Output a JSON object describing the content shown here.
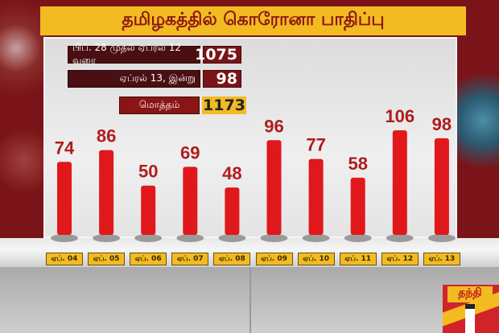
{
  "title": "தமிழகத்தில் கொரோனா பாதிப்பு",
  "summary": [
    {
      "label": "பிப். 28 முதல் ஏப்ரல் 12 வரை",
      "value": "1075"
    },
    {
      "label": "ஏப்ரல் 13, இன்று",
      "value": "98"
    },
    {
      "label": "மொத்தம்",
      "value": "1173"
    }
  ],
  "logo_text": "தந்தி",
  "colors": {
    "bar": "#e0181c",
    "label": "#b01c1c",
    "accent": "#f2bb22"
  },
  "chart_data": {
    "type": "bar",
    "title": "தமிழகத்தில் கொரோனா பாதிப்பு",
    "categories": [
      "ஏப். 04",
      "ஏப். 05",
      "ஏப். 06",
      "ஏப். 07",
      "ஏப். 08",
      "ஏப். 09",
      "ஏப். 10",
      "ஏப். 11",
      "ஏப். 12",
      "ஏப். 13"
    ],
    "values": [
      74,
      86,
      50,
      69,
      48,
      96,
      77,
      58,
      106,
      98
    ],
    "data_labels": true,
    "grid": false
  }
}
